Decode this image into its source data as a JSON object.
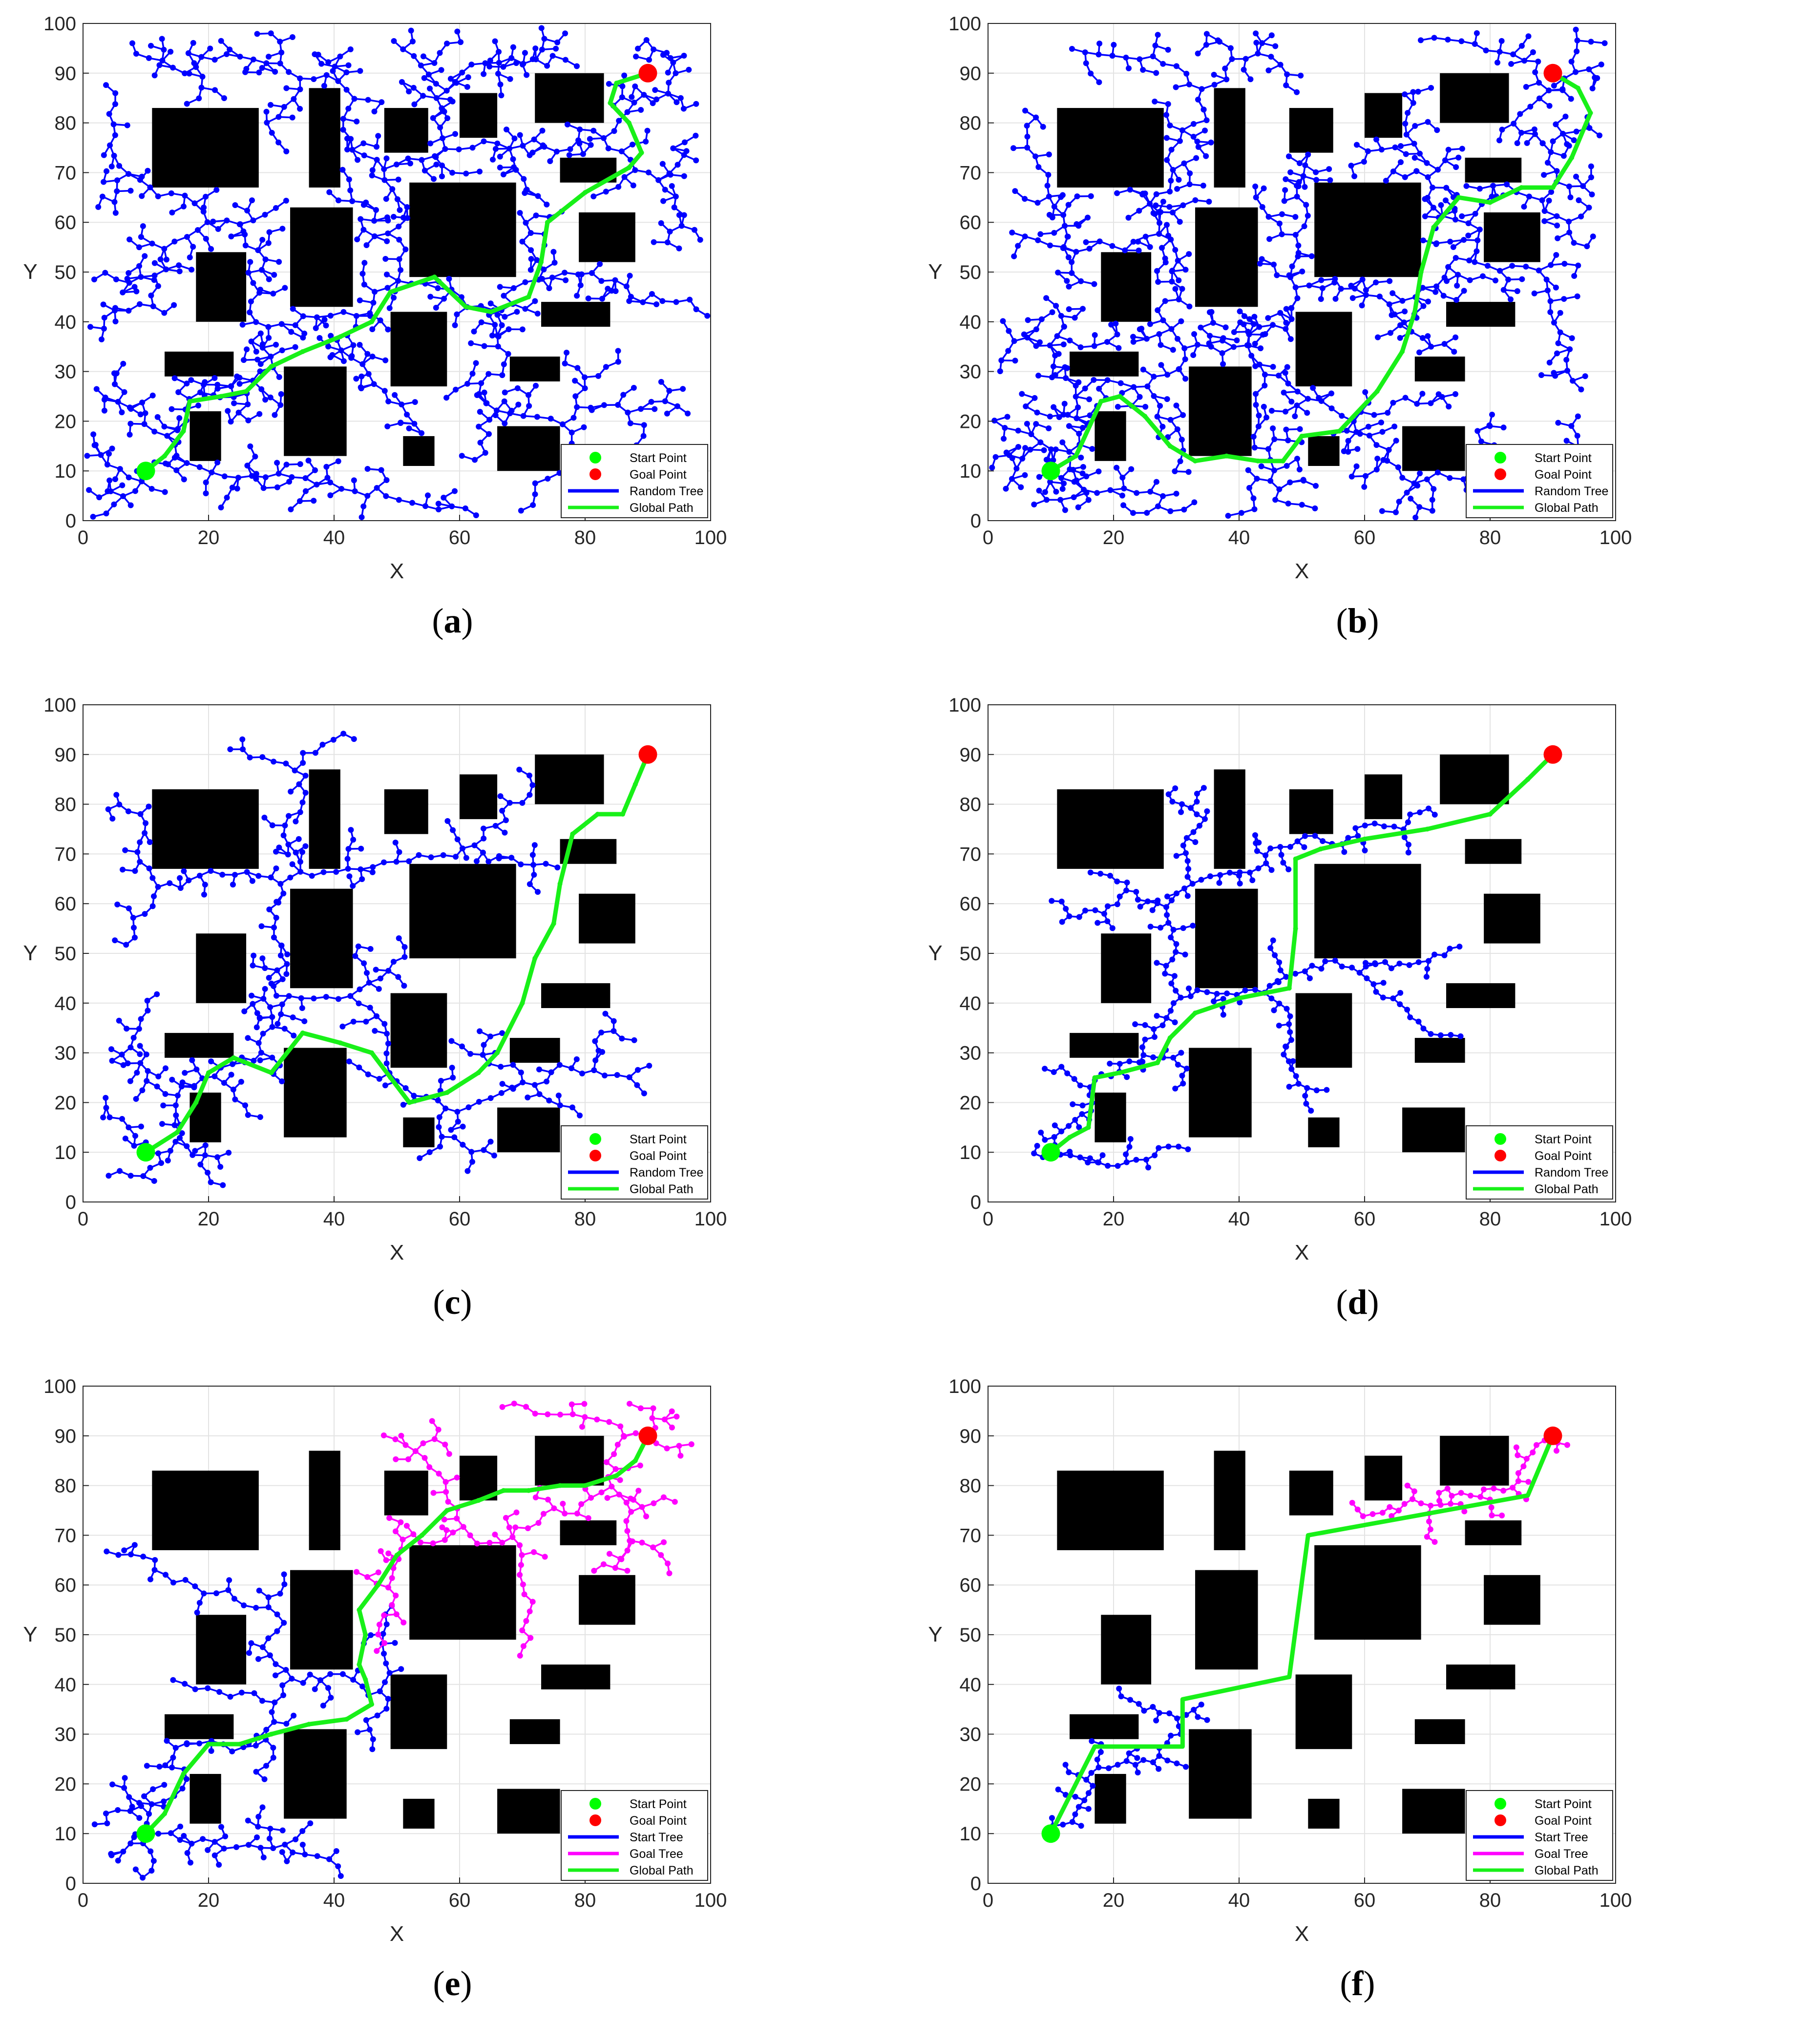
{
  "figure": {
    "panels": [
      {
        "id": "a",
        "label": "a",
        "algo": "rrt"
      },
      {
        "id": "b",
        "label": "b",
        "algo": "rrt"
      },
      {
        "id": "c",
        "label": "c",
        "algo": "rrt"
      },
      {
        "id": "d",
        "label": "d",
        "algo": "rrt"
      },
      {
        "id": "e",
        "label": "e",
        "algo": "bi"
      },
      {
        "id": "f",
        "label": "f",
        "algo": "bi"
      }
    ]
  },
  "chart_data": [
    {
      "type": "scatter",
      "panel": "a",
      "xlabel": "X",
      "ylabel": "Y",
      "xlim": [
        0,
        100
      ],
      "ylim": [
        0,
        100
      ],
      "xticks": [
        "0",
        "20",
        "40",
        "60",
        "80",
        "100"
      ],
      "yticks": [
        "0",
        "10",
        "20",
        "30",
        "40",
        "50",
        "60",
        "70",
        "80",
        "90",
        "100"
      ],
      "legend": [
        "Start Point",
        "Goal Point",
        "Random Tree",
        "Global Path"
      ],
      "legend_position": "bottom-right",
      "grid": true,
      "start": [
        10,
        10
      ],
      "goal": [
        90,
        90
      ],
      "path": [
        [
          10,
          10
        ],
        [
          13,
          13
        ],
        [
          16,
          18
        ],
        [
          17,
          24
        ],
        [
          22,
          25
        ],
        [
          26,
          26
        ],
        [
          30,
          31
        ],
        [
          35,
          34
        ],
        [
          41,
          37
        ],
        [
          46,
          40
        ],
        [
          49,
          46
        ],
        [
          56,
          49
        ],
        [
          61,
          43
        ],
        [
          65,
          42
        ],
        [
          71,
          45
        ],
        [
          73,
          52
        ],
        [
          74,
          60
        ],
        [
          80,
          66
        ],
        [
          87,
          71
        ],
        [
          89,
          74
        ],
        [
          87,
          80
        ],
        [
          84,
          84
        ],
        [
          85,
          88
        ],
        [
          90,
          90
        ]
      ],
      "tree_density": "dense"
    },
    {
      "type": "scatter",
      "panel": "b",
      "xlabel": "X",
      "ylabel": "Y",
      "xlim": [
        0,
        100
      ],
      "ylim": [
        0,
        100
      ],
      "xticks": [
        "0",
        "20",
        "40",
        "60",
        "80",
        "100"
      ],
      "yticks": [
        "0",
        "10",
        "20",
        "30",
        "40",
        "50",
        "60",
        "70",
        "80",
        "90",
        "100"
      ],
      "legend": [
        "Start Point",
        "Goal Point",
        "Random Tree",
        "Global Path"
      ],
      "legend_position": "bottom-right",
      "grid": true,
      "start": [
        10,
        10
      ],
      "goal": [
        90,
        90
      ],
      "path": [
        [
          10,
          10
        ],
        [
          14,
          13
        ],
        [
          18,
          24
        ],
        [
          21,
          25
        ],
        [
          25,
          21
        ],
        [
          29,
          15
        ],
        [
          33,
          12
        ],
        [
          38,
          13
        ],
        [
          43,
          12
        ],
        [
          47,
          12
        ],
        [
          50,
          17
        ],
        [
          56,
          18
        ],
        [
          62,
          26
        ],
        [
          66,
          34
        ],
        [
          68,
          42
        ],
        [
          69,
          50
        ],
        [
          71,
          59
        ],
        [
          75,
          65
        ],
        [
          80,
          64
        ],
        [
          85,
          67
        ],
        [
          90,
          67
        ],
        [
          93,
          73
        ],
        [
          96,
          82
        ],
        [
          94,
          87
        ],
        [
          90,
          90
        ]
      ],
      "tree_density": "dense"
    },
    {
      "type": "scatter",
      "panel": "c",
      "xlabel": "X",
      "ylabel": "Y",
      "xlim": [
        0,
        100
      ],
      "ylim": [
        0,
        100
      ],
      "xticks": [
        "0",
        "20",
        "40",
        "60",
        "80",
        "100"
      ],
      "yticks": [
        "0",
        "10",
        "20",
        "30",
        "40",
        "50",
        "60",
        "70",
        "80",
        "90",
        "100"
      ],
      "legend": [
        "Start Point",
        "Goal Point",
        "Random Tree",
        "Global Path"
      ],
      "legend_position": "bottom-right",
      "grid": true,
      "start": [
        10,
        10
      ],
      "goal": [
        90,
        90
      ],
      "path": [
        [
          10,
          10
        ],
        [
          15,
          14
        ],
        [
          18,
          20
        ],
        [
          20,
          26
        ],
        [
          24,
          29
        ],
        [
          30,
          26
        ],
        [
          35,
          34
        ],
        [
          41,
          32
        ],
        [
          46,
          30
        ],
        [
          49,
          25
        ],
        [
          52,
          20
        ],
        [
          58,
          22
        ],
        [
          63,
          26
        ],
        [
          66,
          30
        ],
        [
          70,
          40
        ],
        [
          72,
          49
        ],
        [
          75,
          56
        ],
        [
          76,
          64
        ],
        [
          78,
          74
        ],
        [
          82,
          78
        ],
        [
          86,
          78
        ],
        [
          88,
          84
        ],
        [
          90,
          90
        ]
      ],
      "tree_density": "medium"
    },
    {
      "type": "scatter",
      "panel": "d",
      "xlabel": "X",
      "ylabel": "Y",
      "xlim": [
        0,
        100
      ],
      "ylim": [
        0,
        100
      ],
      "xticks": [
        "0",
        "20",
        "40",
        "60",
        "80",
        "100"
      ],
      "yticks": [
        "0",
        "10",
        "20",
        "30",
        "40",
        "50",
        "60",
        "70",
        "80",
        "90",
        "100"
      ],
      "legend": [
        "Start Point",
        "Goal Point",
        "Random Tree",
        "Global Path"
      ],
      "legend_position": "bottom-right",
      "grid": true,
      "start": [
        10,
        10
      ],
      "goal": [
        90,
        90
      ],
      "path": [
        [
          10,
          10
        ],
        [
          13,
          13
        ],
        [
          16,
          15
        ],
        [
          17,
          25
        ],
        [
          21,
          26
        ],
        [
          27,
          28
        ],
        [
          29,
          33
        ],
        [
          33,
          38
        ],
        [
          40,
          41
        ],
        [
          48,
          43
        ],
        [
          49,
          55
        ],
        [
          49,
          69
        ],
        [
          53,
          71
        ],
        [
          60,
          73
        ],
        [
          70,
          75
        ],
        [
          80,
          78
        ],
        [
          86,
          85
        ],
        [
          90,
          90
        ]
      ],
      "tree_density": "sparse"
    },
    {
      "type": "scatter",
      "panel": "e",
      "xlabel": "X",
      "ylabel": "Y",
      "xlim": [
        0,
        100
      ],
      "ylim": [
        0,
        100
      ],
      "xticks": [
        "0",
        "20",
        "40",
        "60",
        "80",
        "100"
      ],
      "yticks": [
        "0",
        "10",
        "20",
        "30",
        "40",
        "50",
        "60",
        "70",
        "80",
        "90",
        "100"
      ],
      "legend": [
        "Start Point",
        "Goal Point",
        "Start Tree",
        "Goal Tree",
        "Global Path"
      ],
      "legend_position": "bottom-right",
      "grid": true,
      "start": [
        10,
        10
      ],
      "goal": [
        90,
        90
      ],
      "path": [
        [
          10,
          10
        ],
        [
          13,
          14
        ],
        [
          16,
          22
        ],
        [
          20,
          28
        ],
        [
          25,
          28
        ],
        [
          30,
          30
        ],
        [
          36,
          32
        ],
        [
          42,
          33
        ],
        [
          46,
          36
        ],
        [
          45,
          41
        ],
        [
          44,
          44
        ],
        [
          45,
          50
        ],
        [
          44,
          55
        ],
        [
          47,
          60
        ],
        [
          50,
          66
        ],
        [
          54,
          70
        ],
        [
          58,
          75
        ],
        [
          63,
          77
        ],
        [
          67,
          79
        ],
        [
          71,
          79
        ],
        [
          76,
          80
        ],
        [
          80,
          80
        ],
        [
          85,
          82
        ],
        [
          88,
          85
        ],
        [
          90,
          90
        ]
      ],
      "tree_density": "bi"
    },
    {
      "type": "scatter",
      "panel": "f",
      "xlabel": "X",
      "ylabel": "Y",
      "xlim": [
        0,
        100
      ],
      "ylim": [
        0,
        100
      ],
      "xticks": [
        "0",
        "20",
        "40",
        "60",
        "80",
        "100"
      ],
      "yticks": [
        "0",
        "10",
        "20",
        "30",
        "40",
        "50",
        "60",
        "70",
        "80",
        "90",
        "100"
      ],
      "legend": [
        "Start Point",
        "Goal Point",
        "Start Tree",
        "Goal Tree",
        "Global Path"
      ],
      "legend_position": "bottom-right",
      "grid": true,
      "start": [
        10,
        10
      ],
      "goal": [
        90,
        90
      ],
      "path": [
        [
          10,
          10
        ],
        [
          17,
          27.5
        ],
        [
          31,
          27.5
        ],
        [
          31,
          37
        ],
        [
          48,
          41.5
        ],
        [
          51,
          70
        ],
        [
          86,
          78
        ],
        [
          90,
          90
        ]
      ],
      "tree_density": "bi_sparse"
    }
  ],
  "obstacles": [
    [
      11,
      67,
      17,
      16
    ],
    [
      36,
      67,
      5,
      20
    ],
    [
      48,
      74,
      7,
      9
    ],
    [
      60,
      77,
      6,
      9
    ],
    [
      72,
      80,
      11,
      10
    ],
    [
      76,
      68,
      9,
      5
    ],
    [
      52,
      49,
      17,
      19
    ],
    [
      79,
      52,
      9,
      10
    ],
    [
      18,
      40,
      8,
      14
    ],
    [
      33,
      43,
      10,
      20
    ],
    [
      73,
      39,
      11,
      5
    ],
    [
      13,
      29,
      11,
      5
    ],
    [
      49,
      27,
      9,
      15
    ],
    [
      68,
      28,
      8,
      5
    ],
    [
      32,
      13,
      10,
      18
    ],
    [
      17,
      12,
      5,
      10
    ],
    [
      51,
      11,
      5,
      6
    ],
    [
      66,
      10,
      10,
      9
    ]
  ],
  "colors": {
    "tree": "#0000ff",
    "goal_tree": "#ff00ff",
    "path": "#18f018",
    "start": "#00ff00",
    "goal": "#ff0000",
    "obstacle": "#000000"
  }
}
